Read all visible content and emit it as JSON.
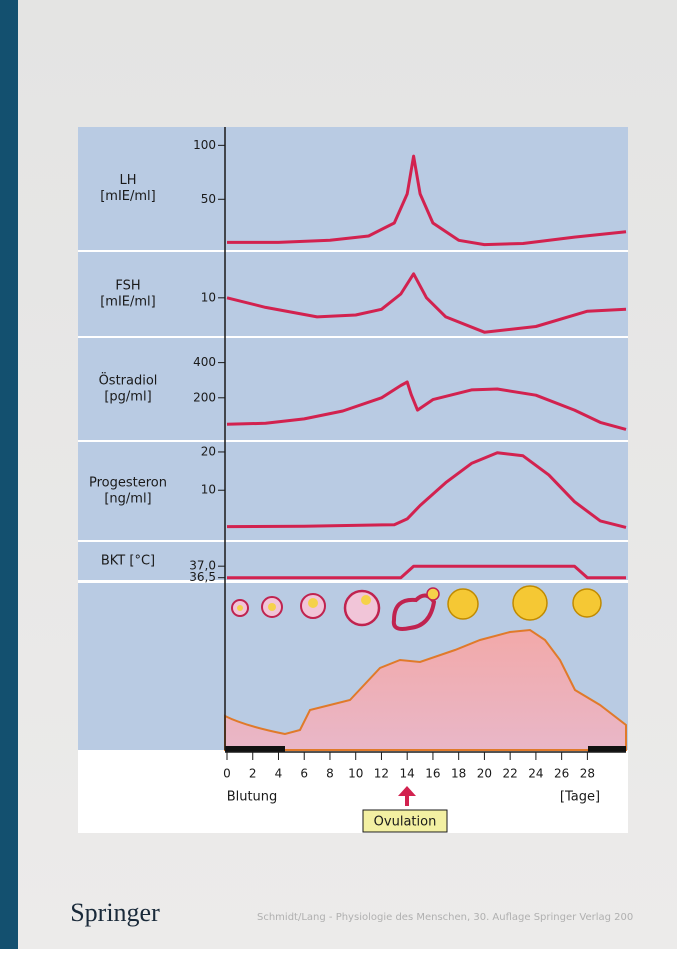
{
  "chart_data": [
    {
      "type": "line",
      "ylabel": [
        "LH",
        "[mIE/ml]"
      ],
      "xlim": [
        0,
        31
      ],
      "ylim": [
        3,
        117
      ],
      "yticks": [
        50,
        100
      ],
      "color": "#d2224f",
      "x": [
        0,
        4,
        8,
        11,
        13,
        14,
        14.5,
        15,
        16,
        18,
        20,
        23,
        27,
        31
      ],
      "values": [
        10,
        10,
        12,
        16,
        28,
        55,
        90,
        55,
        28,
        12,
        8,
        9,
        15,
        20
      ]
    },
    {
      "type": "line",
      "ylabel": [
        "FSH",
        "[mIE/ml]"
      ],
      "xlim": [
        0,
        31
      ],
      "ylim": [
        0,
        22
      ],
      "yticks": [
        10
      ],
      "color": "#d2224f",
      "x": [
        0,
        3,
        7,
        10,
        12,
        13.5,
        14.5,
        15.5,
        17,
        20,
        24,
        28,
        31
      ],
      "values": [
        10,
        7.5,
        5,
        5.5,
        7,
        11,
        16.3,
        10,
        5,
        1,
        2.5,
        6.5,
        7
      ]
    },
    {
      "type": "line",
      "ylabel": [
        "Östradiol",
        "[pg/ml]"
      ],
      "xlim": [
        0,
        31
      ],
      "ylim": [
        -40,
        540
      ],
      "yticks": [
        200,
        400
      ],
      "color": "#d2224f",
      "x": [
        0,
        3,
        6,
        9,
        12,
        13.5,
        14,
        14.3,
        14.8,
        16,
        19,
        21,
        24,
        27,
        29,
        31
      ],
      "values": [
        50,
        55,
        80,
        125,
        200,
        270,
        290,
        220,
        130,
        190,
        245,
        250,
        215,
        130,
        60,
        20
      ]
    },
    {
      "type": "line",
      "ylabel": [
        "Progesteron",
        "[ng/ml]"
      ],
      "xlim": [
        0,
        31
      ],
      "ylim": [
        -3,
        22.6
      ],
      "yticks": [
        10,
        20
      ],
      "color": "#d2224f",
      "x": [
        0,
        6,
        13,
        14,
        15,
        17,
        19,
        21,
        23,
        25,
        27,
        29,
        31
      ],
      "values": [
        0.5,
        0.6,
        1,
        2.5,
        6,
        12,
        17,
        19.8,
        19,
        14,
        7,
        2,
        0.3
      ]
    },
    {
      "type": "line",
      "ylabel": [
        "BKT [°C]"
      ],
      "xlim": [
        0,
        31
      ],
      "ylim": [
        36.4,
        38.05
      ],
      "yticks": [
        {
          "value": 36.5,
          "label": "36,5"
        },
        {
          "value": 37.0,
          "label": "37,0"
        }
      ],
      "color": "#d2224f",
      "x": [
        0,
        13.5,
        14.5,
        27,
        28,
        31
      ],
      "values": [
        36.5,
        36.5,
        37.0,
        37.0,
        36.5,
        36.5
      ]
    }
  ],
  "x_axis": {
    "xlim": [
      0,
      31
    ],
    "xticks": [
      0,
      2,
      4,
      6,
      8,
      10,
      12,
      14,
      16,
      18,
      20,
      22,
      24,
      26,
      28
    ],
    "left_label": "Blutung",
    "right_label": "[Tage]",
    "marker_label": "Ovulation"
  },
  "footer": {
    "logo": "Springer",
    "caption": "Schmidt/Lang - Physiologie des Menschen, 30. Auflage Springer Verlag 200"
  }
}
